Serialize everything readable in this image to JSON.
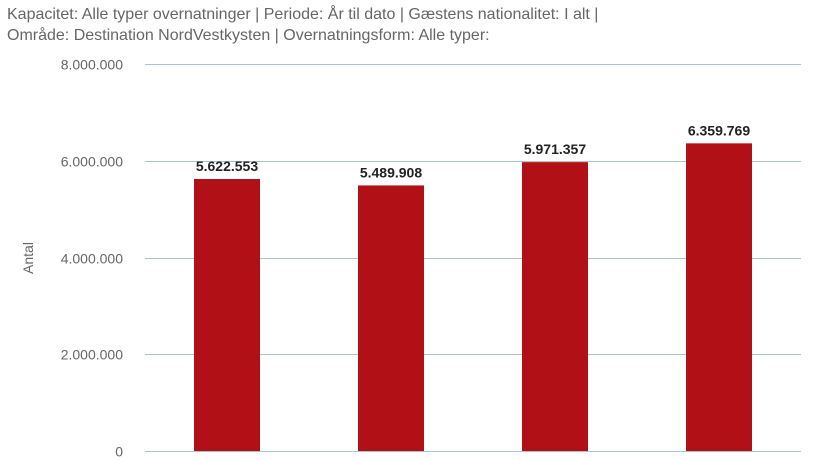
{
  "header": {
    "title_line1": "Kapacitet: Alle typer overnatninger | Periode: År til dato | Gæstens nationalitet: I alt |",
    "title_line2": "Område: Destination NordVestkysten | Overnatningsform: Alle typer:"
  },
  "colors": {
    "bar": "#b01016",
    "grid": "#a9c3cf",
    "axis_text": "#666666",
    "data_label": "#222222"
  },
  "chart_data": {
    "type": "bar",
    "title": "",
    "xlabel": "",
    "ylabel": "Antal",
    "ylim": [
      0,
      8000000
    ],
    "yticks": [
      0,
      2000000,
      4000000,
      6000000,
      8000000
    ],
    "ytick_labels": [
      "0",
      "2.000.000",
      "4.000.000",
      "6.000.000",
      "8.000.000"
    ],
    "categories": [
      "",
      "",
      "",
      ""
    ],
    "values": [
      5622553,
      5489908,
      5971357,
      6359769
    ],
    "value_labels": [
      "5.622.553",
      "5.489.908",
      "5.971.357",
      "6.359.769"
    ],
    "grid": true,
    "legend": "none"
  }
}
